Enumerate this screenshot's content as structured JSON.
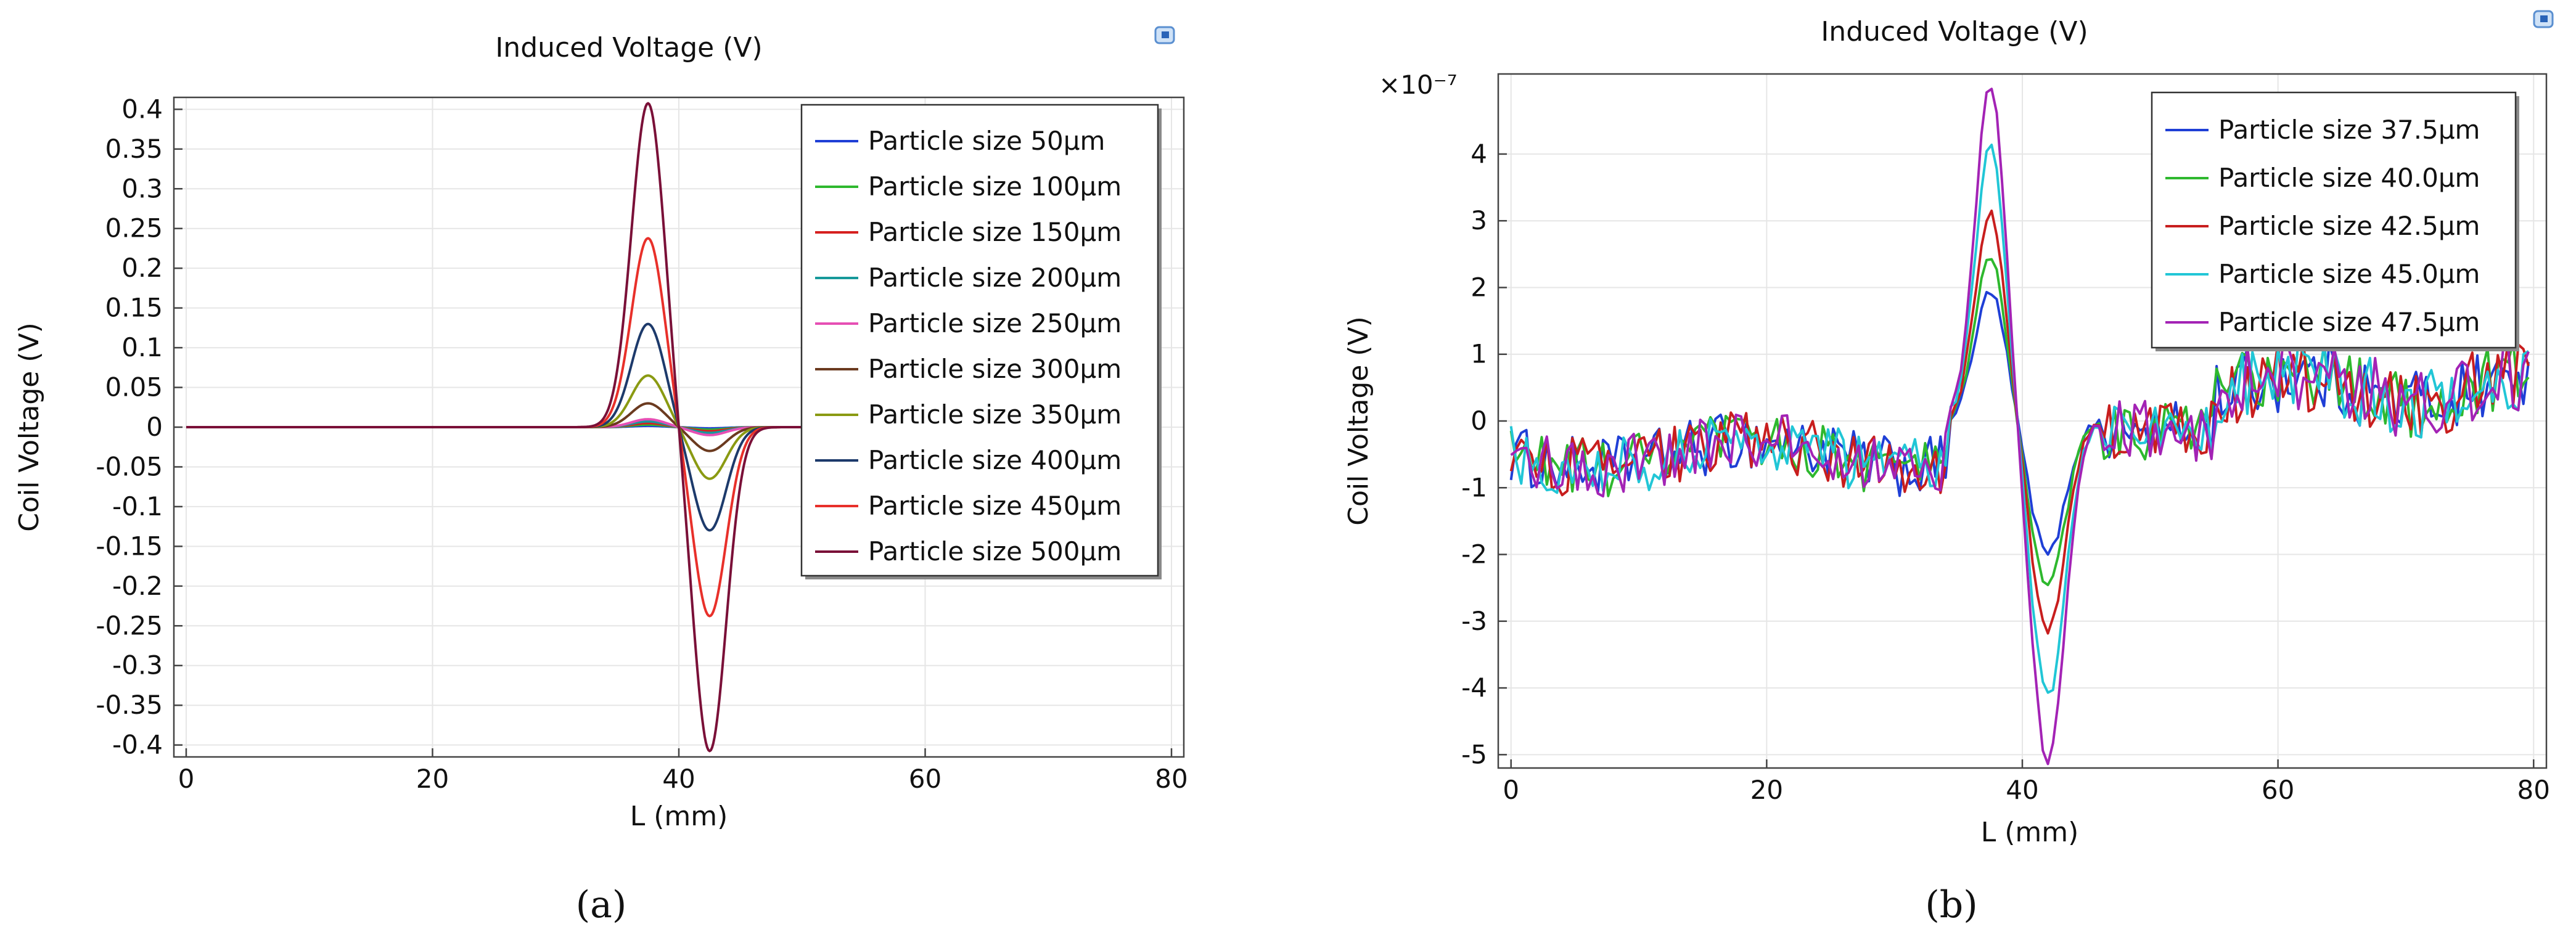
{
  "chart_data": [
    {
      "panel": "(a)",
      "type": "line",
      "title": "Induced Voltage (V)",
      "xlabel": "L (mm)",
      "ylabel": "Coil Voltage (V)",
      "xlim": [
        -1,
        81
      ],
      "ylim": [
        -0.415,
        0.415
      ],
      "xticks": [
        "0",
        "20",
        "40",
        "60",
        "80"
      ],
      "yticks": [
        "0.4",
        "0.35",
        "0.3",
        "0.25",
        "0.2",
        "0.15",
        "0.1",
        "0.05",
        "0",
        "-0.05",
        "-0.1",
        "-0.15",
        "-0.2",
        "-0.25",
        "-0.3",
        "-0.35",
        "-0.4"
      ],
      "legend_position": "top-right",
      "series": [
        {
          "name": "Particle size 50μm",
          "color": "#1f3fd6",
          "amplitude": 0.0016
        },
        {
          "name": "Particle size 100μm",
          "color": "#2eb82e",
          "amplitude": 0.0032
        },
        {
          "name": "Particle size 150μm",
          "color": "#d6201f",
          "amplitude": 0.005
        },
        {
          "name": "Particle size 200μm",
          "color": "#17999a",
          "amplitude": 0.0072
        },
        {
          "name": "Particle size 250μm",
          "color": "#e64fb4",
          "amplitude": 0.01
        },
        {
          "name": "Particle size 300μm",
          "color": "#6b3a1f",
          "amplitude": 0.03
        },
        {
          "name": "Particle size 350μm",
          "color": "#8a9a12",
          "amplitude": 0.065
        },
        {
          "name": "Particle size 400μm",
          "color": "#1d3a6b",
          "amplitude": 0.13
        },
        {
          "name": "Particle size 450μm",
          "color": "#e8302a",
          "amplitude": 0.238
        },
        {
          "name": "Particle size 500μm",
          "color": "#7a1038",
          "amplitude": 0.408
        }
      ],
      "peak_x": 37.5,
      "trough_x": 42.5
    },
    {
      "panel": "(b)",
      "type": "line",
      "title": "Induced Voltage (V)",
      "xlabel": "L (mm)",
      "ylabel": "Coil Voltage (V)",
      "scale_label": "×10⁻⁷",
      "xlim": [
        -1,
        81
      ],
      "ylim": [
        -5.2,
        5.2
      ],
      "xticks": [
        "0",
        "20",
        "40",
        "60",
        "80"
      ],
      "yticks": [
        "4",
        "3",
        "2",
        "1",
        "0",
        "-1",
        "-2",
        "-3",
        "-4",
        "-5"
      ],
      "legend_position": "top-right",
      "series": [
        {
          "name": "Particle size 37.5μm",
          "color": "#1f3fd6",
          "peak": 1.95,
          "trough": -2.0
        },
        {
          "name": "Particle size 40.0μm",
          "color": "#2eb82e",
          "peak": 2.45,
          "trough": -2.5
        },
        {
          "name": "Particle size 42.5μm",
          "color": "#c81e1e",
          "peak": 3.1,
          "trough": -3.15
        },
        {
          "name": "Particle size 45.0μm",
          "color": "#21c6d6",
          "peak": 4.1,
          "trough": -4.15
        },
        {
          "name": "Particle size 47.5μm",
          "color": "#a323b5",
          "peak": 5.05,
          "trough": -5.1
        }
      ],
      "peak_x": 37.5,
      "trough_x": 42.0
    }
  ],
  "captions": {
    "a": "(a)",
    "b": "(b)"
  }
}
